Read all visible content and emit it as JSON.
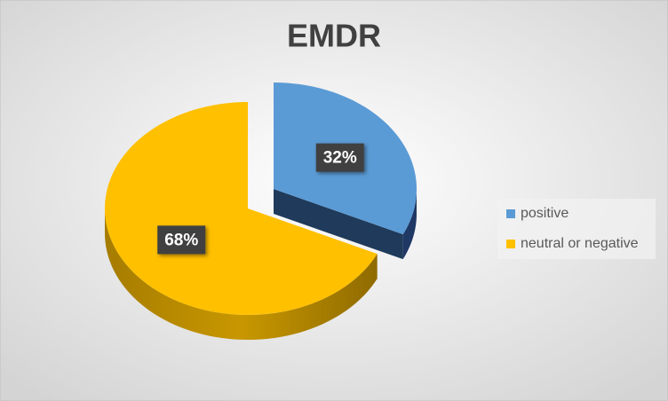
{
  "chart_data": {
    "type": "pie",
    "title": "EMDR",
    "categories": [
      "positive",
      "neutral or negative"
    ],
    "values": [
      32,
      68
    ],
    "value_labels": [
      "32%",
      "68%"
    ],
    "colors": [
      "#5b9bd5",
      "#ffc000"
    ],
    "legend": "right"
  }
}
